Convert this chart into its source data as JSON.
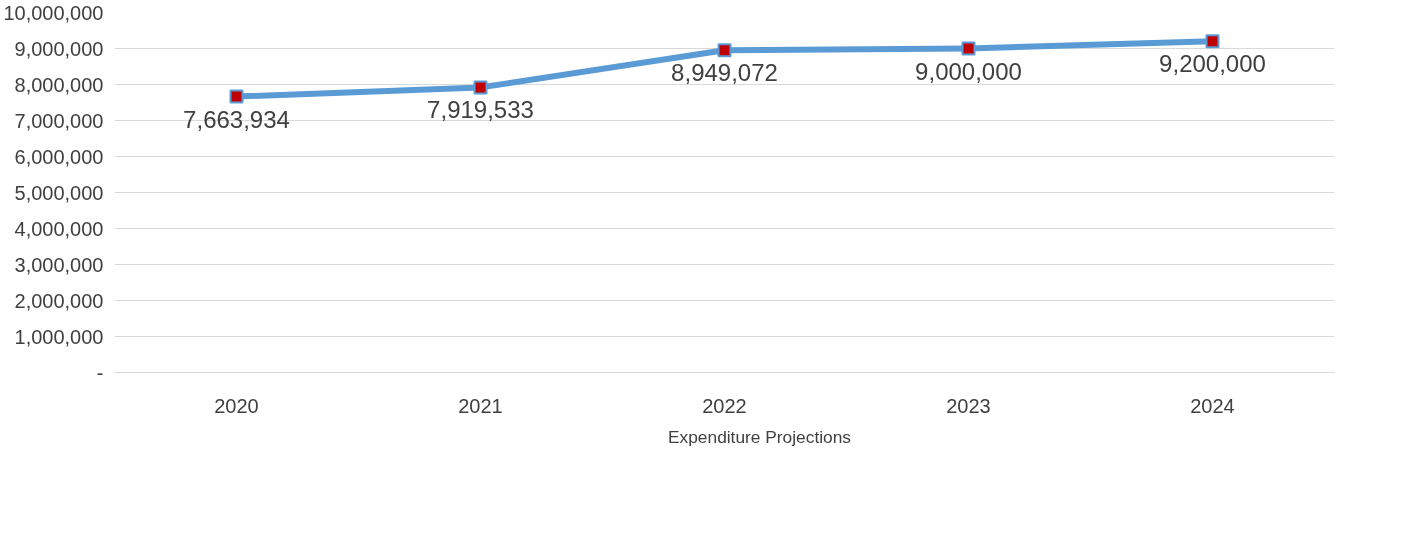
{
  "chart_data": {
    "type": "line",
    "categories": [
      "2020",
      "2021",
      "2022",
      "2023",
      "2024"
    ],
    "series": [
      {
        "name": "Expenditure Projections",
        "color": "#5b9bd5",
        "values": [
          7663934,
          7919533,
          8949072,
          9000000,
          9200000
        ],
        "value_labels": [
          "7,663,934",
          "7,919,533",
          "8,949,072",
          "9,000,000",
          "9,200,000"
        ]
      }
    ],
    "ylim": [
      0,
      10000000
    ],
    "yticks": [
      {
        "value": 0,
        "label": "-"
      },
      {
        "value": 1000000,
        "label": "1,000,000"
      },
      {
        "value": 2000000,
        "label": "2,000,000"
      },
      {
        "value": 3000000,
        "label": "3,000,000"
      },
      {
        "value": 4000000,
        "label": "4,000,000"
      },
      {
        "value": 5000000,
        "label": "5,000,000"
      },
      {
        "value": 6000000,
        "label": "6,000,000"
      },
      {
        "value": 7000000,
        "label": "7,000,000"
      },
      {
        "value": 8000000,
        "label": "8,000,000"
      },
      {
        "value": 9000000,
        "label": "9,000,000"
      },
      {
        "value": 10000000,
        "label": "10,000,000"
      }
    ],
    "grid": "y",
    "legend": "bottom",
    "marker": "square",
    "line_style": "solid"
  }
}
